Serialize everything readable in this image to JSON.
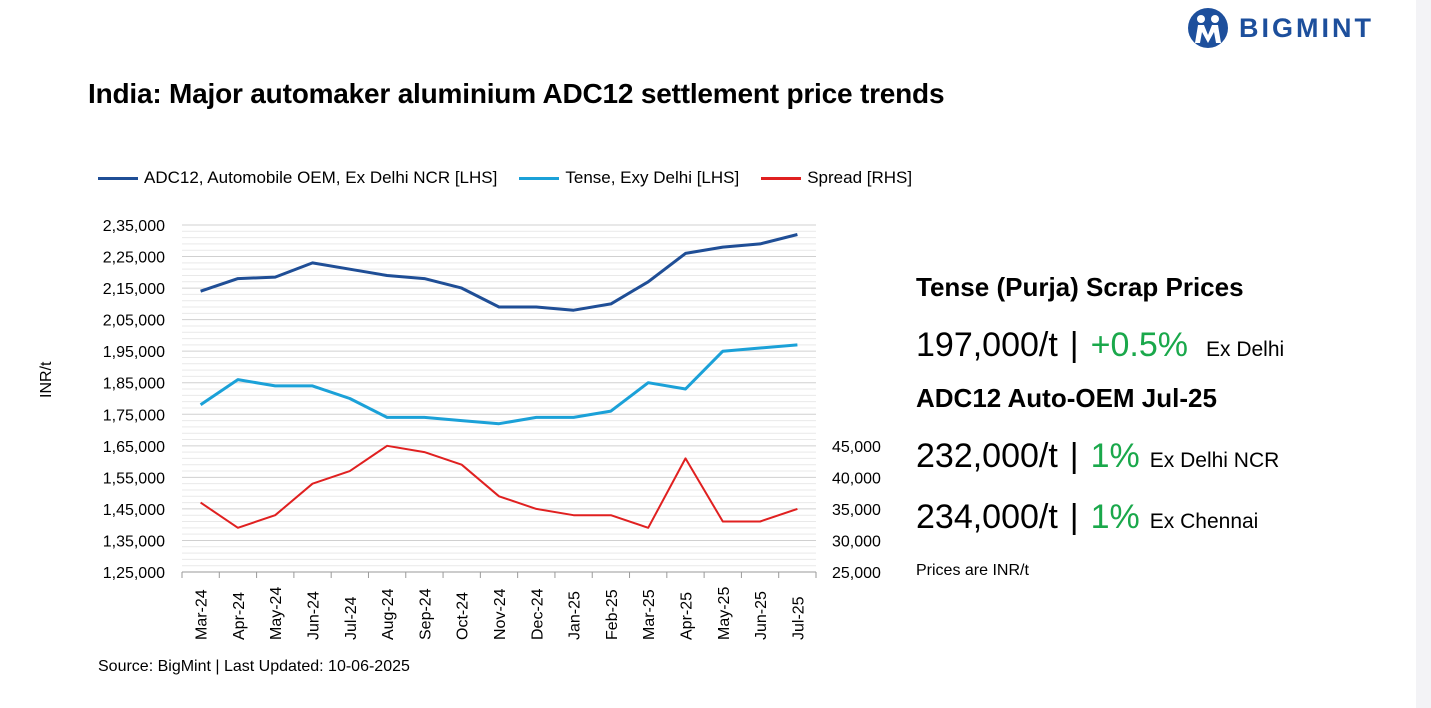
{
  "brand": {
    "name": "BIGMINT",
    "color": "#1d4f9c"
  },
  "title": "India: Major automaker aluminium ADC12 settlement price trends",
  "chart_data": {
    "type": "line",
    "categories": [
      "Mar-24",
      "Apr-24",
      "May-24",
      "Jun-24",
      "Jul-24",
      "Aug-24",
      "Sep-24",
      "Oct-24",
      "Nov-24",
      "Dec-24",
      "Jan-25",
      "Feb-25",
      "Mar-25",
      "Apr-25",
      "May-25",
      "Jun-25",
      "Jul-25"
    ],
    "ylabel": "INR/t",
    "y_left": {
      "range": [
        125000,
        235000
      ],
      "ticks": [
        "1,25,000",
        "1,35,000",
        "1,45,000",
        "1,55,000",
        "1,65,000",
        "1,75,000",
        "1,85,000",
        "1,95,000",
        "2,05,000",
        "2,15,000",
        "2,25,000",
        "2,35,000"
      ]
    },
    "y_right": {
      "range": [
        25000,
        45000
      ],
      "ticks": [
        "25,000",
        "30,000",
        "35,000",
        "40,000",
        "45,000"
      ]
    },
    "grid": true,
    "legend_position": "top",
    "series": [
      {
        "name": "ADC12, Automobile OEM, Ex Delhi NCR [LHS]",
        "axis": "left",
        "color": "#1f4e96",
        "values": [
          214000,
          218000,
          218500,
          223000,
          221000,
          219000,
          218000,
          215000,
          209000,
          209000,
          208000,
          210000,
          217000,
          226000,
          228000,
          229000,
          232000
        ]
      },
      {
        "name": "Tense, Exy Delhi [LHS]",
        "axis": "left",
        "color": "#1ba1d8",
        "values": [
          178000,
          186000,
          184000,
          184000,
          180000,
          174000,
          174000,
          173000,
          172000,
          174000,
          174000,
          176000,
          185000,
          183000,
          195000,
          196000,
          197000
        ]
      },
      {
        "name": "Spread [RHS]",
        "axis": "right",
        "color": "#e02020",
        "values": [
          36000,
          32000,
          34000,
          39000,
          41000,
          45000,
          44000,
          42000,
          37000,
          35000,
          34000,
          34000,
          32000,
          43000,
          33000,
          33000,
          35000
        ]
      }
    ]
  },
  "panel": {
    "heading1": "Tense (Purja) Scrap Prices",
    "tense": {
      "price": "197,000/t",
      "sep": "|",
      "change": "+0.5%",
      "loc": "Ex Delhi"
    },
    "heading2": "ADC12 Auto-OEM Jul-25",
    "adc_delhi": {
      "price": "232,000/t",
      "sep": "|",
      "change": "1%",
      "loc": "Ex Delhi NCR"
    },
    "adc_chennai": {
      "price": "234,000/t",
      "sep": "|",
      "change": "1%",
      "loc": "Ex Chennai"
    },
    "note": "Prices are INR/t"
  },
  "source": "Source: BigMint | Last Updated: 10-06-2025"
}
